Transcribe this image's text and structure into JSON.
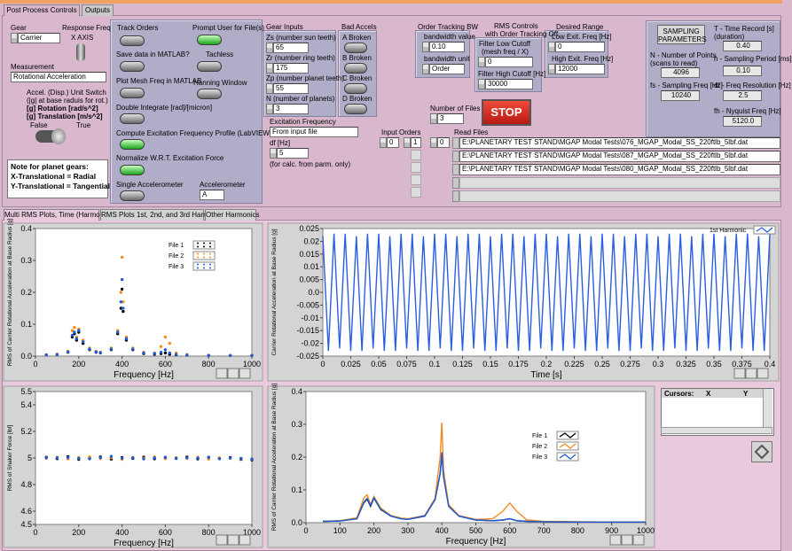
{
  "tabs": [
    "Post Process Controls",
    "Outputs"
  ],
  "gear": {
    "label": "Gear",
    "value": "Carrier"
  },
  "response_freq": {
    "label": "Response Freq",
    "value": "X AXIS"
  },
  "measurement": {
    "label": "Measurement",
    "value": "Rotational Acceleration"
  },
  "unit_switch": {
    "lines": [
      "Accel. (Disp.) Unit Switch",
      "(|g| at base raduis for rot.)",
      "[g] Rotation [rad/s^2]",
      "[g] Translation [m/s^2]"
    ],
    "false_label": "False",
    "true_label": "True",
    "on": true
  },
  "note": [
    "Note for planet gears:",
    "X-Translational = Radial",
    "Y-Translational = Tangential"
  ],
  "switches": [
    {
      "label": "Track Orders",
      "on": false
    },
    {
      "label": "Prompt User for File(s)",
      "on": true
    },
    {
      "label": "Save data in MATLAB?",
      "on": false
    },
    {
      "label": "Tachless",
      "on": false
    },
    {
      "label": "Plot Mesh Freq in MATLAB",
      "on": false
    },
    {
      "label": "Hanning Window",
      "on": false
    },
    {
      "label": "Double Integrate [rad]/[micron]",
      "on": false
    },
    {
      "label": "Compute Excitation Frequency Profile (LabVIEW)",
      "on": true
    },
    {
      "label": "Normalize W.R.T. Excitation Force",
      "on": true
    },
    {
      "label": "Single Accelerometer",
      "on": false
    }
  ],
  "accelerometer": {
    "label": "Accelerometer",
    "value": "A"
  },
  "gear_inputs": {
    "title": "Gear Inputs",
    "items": [
      {
        "label": "Zs (number sun teeth)",
        "value": 65
      },
      {
        "label": "Zr (number ring teeth)",
        "value": 175
      },
      {
        "label": "Zp (number planet teeth)",
        "value": 55
      },
      {
        "label": "N (number of planets)",
        "value": 3
      }
    ]
  },
  "bad_accels": {
    "title": "Bad Accels",
    "items": [
      {
        "label": "A Broken",
        "on": false
      },
      {
        "label": "B Broken",
        "on": false
      },
      {
        "label": "C Broken",
        "on": false
      },
      {
        "label": "D Broken",
        "on": false
      }
    ]
  },
  "excitation": {
    "label": "Excitation Frequency",
    "value": "From input file",
    "df_label": "df [Hz]",
    "df": 5,
    "note": "(for calc. from parm. only)"
  },
  "input_orders": {
    "label": "Input Orders",
    "index": 0,
    "values": [
      1
    ]
  },
  "order_tracking": {
    "title": "Order Tracking BW",
    "bw_label": "bandwidth value",
    "bw": "0.10",
    "unit_label": "bandwidth unit",
    "unit": "Order"
  },
  "rms_controls": {
    "title": [
      "RMS Controls",
      "with Order Tracking Off"
    ],
    "low_label": [
      "Filter Low Cutoff",
      "(mesh freq / X)"
    ],
    "low": 0,
    "high_label": "Filter High Cutoff [Hz]",
    "high": 30000
  },
  "desired_range": {
    "title": "Desired Range",
    "low_label": "Low Exit. Freq [Hz]",
    "low": 0,
    "high_label": "High Exit. Freq [Hz]",
    "high": 12000
  },
  "number_of_files": {
    "label": "Number of Files",
    "value": 3
  },
  "stop": "STOP",
  "read_files": {
    "label": "Read Files",
    "index": 0,
    "paths": [
      "E:\\PLANETARY TEST STAND\\MGAP Modal Tests\\076_MGAP_Modal_SS_220ftlb_5lbf.dat",
      "E:\\PLANETARY TEST STAND\\MGAP Modal Tests\\087_MGAP_Modal_SS_220ftlb_5lbf.dat",
      "E:\\PLANETARY TEST STAND\\MGAP Modal Tests\\080_MGAP_Modal_SS_220ftlb_5lbf.dat"
    ]
  },
  "sampling": {
    "button": [
      "SAMPLING",
      "PARAMETERS"
    ],
    "items": [
      {
        "label": [
          "T - Time Record [s]",
          "(duration)"
        ],
        "value": "0.40"
      },
      {
        "label": [
          "N - Number of Points",
          "(scans to read)"
        ],
        "value": "4096"
      },
      {
        "label": [
          "h - Sampling Period [ms]"
        ],
        "value": "0.10"
      },
      {
        "label": [
          "fs - Sampling Freq [Hz]"
        ],
        "value": "10240"
      },
      {
        "label": [
          "df - Freq Resolution [Hz]"
        ],
        "value": "2.5"
      },
      {
        "label": [
          "fh - Nyquist Freq [Hz]"
        ],
        "value": "5120.0"
      }
    ]
  },
  "subtabs": [
    "Multi RMS Plots, Time (Harmonics)",
    "RMS Plots 1st, 2nd, and 3rd Harmonic",
    "Other Harmonics"
  ],
  "plots": [
    {
      "type": "scatter",
      "xlabel": "Frequency [Hz]",
      "ylabel": "RMS of Carrier Rotational Acceleration at Base Radius [g]",
      "xlim": [
        0,
        1000
      ],
      "ylim": [
        0,
        0.4
      ],
      "xticks": [
        0,
        200,
        400,
        600,
        800,
        1000
      ],
      "yticks": [
        {
          "value": 0,
          "label": "0.0"
        },
        0.1,
        0.2,
        0.3,
        0.4
      ],
      "x": [
        50,
        100,
        150,
        170,
        180,
        190,
        200,
        220,
        250,
        280,
        300,
        350,
        380,
        395,
        400,
        405,
        420,
        450,
        500,
        550,
        580,
        600,
        620,
        650,
        700,
        800,
        900,
        1000
      ],
      "series": [
        {
          "name": "File 1",
          "color": "#000000",
          "values": [
            0.004,
            0.005,
            0.012,
            0.06,
            0.07,
            0.05,
            0.075,
            0.04,
            0.02,
            0.012,
            0.01,
            0.02,
            0.07,
            0.15,
            0.21,
            0.14,
            0.05,
            0.02,
            0.008,
            0.006,
            0.008,
            0.01,
            0.006,
            0.004,
            0.003,
            0.002,
            0.002,
            0.002
          ]
        },
        {
          "name": "File 2",
          "color": "#f28c1e",
          "values": [
            0.004,
            0.006,
            0.015,
            0.08,
            0.09,
            0.06,
            0.085,
            0.05,
            0.025,
            0.015,
            0.012,
            0.025,
            0.08,
            0.2,
            0.31,
            0.17,
            0.06,
            0.025,
            0.012,
            0.01,
            0.03,
            0.06,
            0.04,
            0.01,
            0.005,
            0.003,
            0.002,
            0.002
          ]
        },
        {
          "name": "File 3",
          "color": "#1f5bd6",
          "values": [
            0.004,
            0.005,
            0.013,
            0.065,
            0.075,
            0.055,
            0.08,
            0.045,
            0.022,
            0.013,
            0.011,
            0.022,
            0.075,
            0.17,
            0.24,
            0.15,
            0.055,
            0.022,
            0.01,
            0.008,
            0.012,
            0.02,
            0.01,
            0.005,
            0.003,
            0.002,
            0.002,
            0.002
          ]
        }
      ]
    },
    {
      "type": "line",
      "xlabel": "Time [s]",
      "ylabel": "Carrier Rotational Acceleration at Base Radius [g]",
      "xlim": [
        0,
        0.4
      ],
      "ylim": [
        -0.025,
        0.025
      ],
      "xticks": [
        0,
        0.025,
        0.05,
        0.075,
        0.1,
        0.125,
        0.15,
        0.175,
        0.2,
        0.225,
        0.25,
        0.275,
        0.3,
        0.325,
        0.35,
        0.375,
        0.4
      ],
      "yticks": [
        -0.025,
        -0.02,
        -0.015,
        -0.01,
        -0.005,
        {
          "value": 0,
          "label": "0.0"
        },
        0.005,
        0.01,
        0.015,
        0.02,
        0.025
      ],
      "x": [
        0,
        0.005,
        0.01,
        0.015,
        0.02,
        0.025,
        0.03,
        0.035,
        0.04,
        0.045,
        0.05,
        0.055,
        0.06,
        0.065,
        0.07,
        0.075,
        0.08,
        0.085,
        0.09,
        0.095,
        0.1,
        0.105,
        0.11,
        0.115,
        0.12,
        0.125,
        0.13,
        0.135,
        0.14,
        0.145,
        0.15,
        0.155,
        0.16,
        0.165,
        0.17,
        0.175,
        0.18,
        0.185,
        0.19,
        0.195,
        0.2,
        0.205,
        0.21,
        0.215,
        0.22,
        0.225,
        0.23,
        0.235,
        0.24,
        0.245,
        0.25,
        0.255,
        0.26,
        0.265,
        0.27,
        0.275,
        0.28,
        0.285,
        0.29,
        0.295,
        0.3,
        0.305,
        0.31,
        0.315,
        0.32,
        0.325,
        0.33,
        0.335,
        0.34,
        0.345,
        0.35,
        0.355,
        0.36,
        0.365,
        0.37,
        0.375,
        0.38,
        0.385,
        0.39,
        0.395,
        0.4
      ],
      "series": [
        {
          "name": "1st Harmonic",
          "color": "#2a5fe0",
          "values": [
            0.022,
            -0.023,
            0.023,
            -0.022,
            0.023,
            -0.023,
            0.022,
            -0.023,
            0.023,
            -0.022,
            0.023,
            -0.023,
            0.022,
            -0.023,
            0.023,
            -0.022,
            0.023,
            -0.023,
            0.022,
            -0.023,
            0.023,
            -0.022,
            0.023,
            -0.023,
            0.022,
            -0.023,
            0.023,
            -0.022,
            0.023,
            -0.023,
            0.022,
            -0.023,
            0.023,
            -0.022,
            0.023,
            -0.023,
            0.022,
            -0.023,
            0.023,
            -0.022,
            0.023,
            -0.023,
            0.022,
            -0.023,
            0.023,
            -0.022,
            0.023,
            -0.023,
            0.022,
            -0.023,
            0.023,
            -0.022,
            0.023,
            -0.023,
            0.022,
            -0.023,
            0.023,
            -0.022,
            0.023,
            -0.023,
            0.022,
            -0.023,
            0.023,
            -0.022,
            0.023,
            -0.023,
            0.022,
            -0.023,
            0.023,
            -0.022,
            0.023,
            -0.023,
            0.022,
            -0.023,
            0.023,
            -0.022,
            0.023,
            -0.023,
            0.022,
            -0.023,
            0.023
          ]
        }
      ]
    },
    {
      "type": "scatter",
      "xlabel": "Frequency [Hz]",
      "ylabel": "RMS of Shaker Force [lbf]",
      "xlim": [
        0,
        1000
      ],
      "ylim": [
        4.5,
        5.5
      ],
      "xticks": [
        0,
        200,
        400,
        600,
        800,
        1000
      ],
      "yticks": [
        4.5,
        4.6,
        4.8,
        5,
        5.2,
        5.4,
        5.5
      ],
      "x": [
        50,
        100,
        150,
        200,
        250,
        300,
        350,
        400,
        450,
        500,
        550,
        600,
        650,
        700,
        750,
        800,
        850,
        900,
        950,
        1000
      ],
      "series": [
        {
          "name": "File 1",
          "color": "#000000",
          "values": [
            5.005,
            4.995,
            5.01,
            4.99,
            5.0,
            5.008,
            4.992,
            5.003,
            4.997,
            5.006,
            4.994,
            5.002,
            4.998,
            5.007,
            4.993,
            5.001,
            4.996,
            5.004,
            4.99,
            4.985
          ]
        },
        {
          "name": "File 2",
          "color": "#f28c1e",
          "values": [
            4.998,
            5.006,
            4.993,
            5.004,
            5.009,
            4.996,
            5.002,
            4.99,
            5.005,
            4.999,
            5.008,
            4.995,
            5.003,
            4.997,
            5.006,
            4.992,
            5.002,
            4.998,
            4.995,
            4.99
          ]
        },
        {
          "name": "File 3",
          "color": "#1f5bd6",
          "values": [
            5.002,
            5.0,
            5.004,
            4.997,
            4.994,
            5.003,
            5.012,
            4.998,
            5.001,
            4.993,
            5.0,
            5.005,
            4.996,
            5.002,
            4.999,
            5.006,
            4.994,
            5.0,
            4.997,
            4.992
          ]
        }
      ]
    },
    {
      "type": "line",
      "xlabel": "Frequency [Hz]",
      "ylabel": "RMS of Carrier Rotational Acceleration at Base Radius [g]",
      "xlim": [
        0,
        1000
      ],
      "ylim": [
        0,
        0.4
      ],
      "xticks": [
        0,
        100,
        200,
        300,
        400,
        500,
        600,
        700,
        800,
        900,
        1000
      ],
      "yticks": [
        {
          "value": 0,
          "label": "0.0"
        },
        0.1,
        0.2,
        0.3,
        0.4
      ],
      "x": [
        50,
        100,
        150,
        170,
        180,
        190,
        200,
        220,
        250,
        280,
        300,
        350,
        380,
        395,
        400,
        405,
        420,
        450,
        500,
        550,
        580,
        600,
        620,
        650,
        700,
        800,
        900,
        1000
      ],
      "series": [
        {
          "name": "File 1",
          "color": "#000000",
          "values": [
            0.004,
            0.005,
            0.012,
            0.06,
            0.072,
            0.05,
            0.075,
            0.04,
            0.02,
            0.012,
            0.01,
            0.02,
            0.07,
            0.15,
            0.21,
            0.14,
            0.05,
            0.02,
            0.008,
            0.006,
            0.008,
            0.012,
            0.006,
            0.004,
            0.003,
            0.002,
            0.002,
            0.002
          ]
        },
        {
          "name": "File 2",
          "color": "#f28c1e",
          "values": [
            0.004,
            0.006,
            0.015,
            0.075,
            0.085,
            0.055,
            0.08,
            0.045,
            0.022,
            0.014,
            0.012,
            0.022,
            0.075,
            0.2,
            0.305,
            0.16,
            0.055,
            0.022,
            0.01,
            0.012,
            0.035,
            0.06,
            0.035,
            0.008,
            0.004,
            0.003,
            0.002,
            0.002
          ]
        },
        {
          "name": "File 3",
          "color": "#1f5bd6",
          "values": [
            0.004,
            0.005,
            0.012,
            0.062,
            0.074,
            0.052,
            0.076,
            0.041,
            0.02,
            0.012,
            0.01,
            0.021,
            0.07,
            0.15,
            0.215,
            0.14,
            0.05,
            0.02,
            0.008,
            0.006,
            0.008,
            0.012,
            0.006,
            0.004,
            0.003,
            0.002,
            0.002,
            0.002
          ]
        }
      ]
    }
  ],
  "cursors": {
    "headers": [
      "Cursors:",
      "X",
      "Y"
    ]
  }
}
